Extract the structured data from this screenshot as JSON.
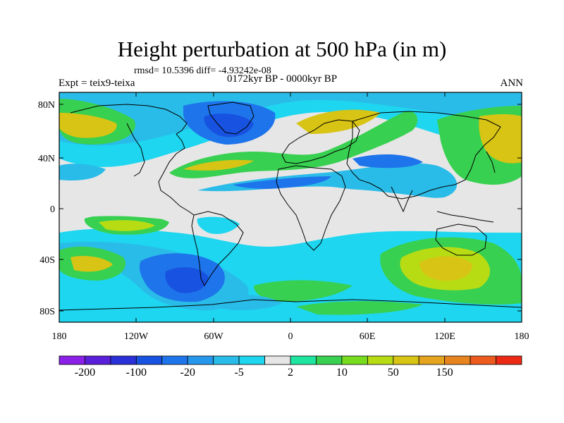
{
  "title": "Height perturbation at 500 hPa (in m)",
  "stats_line": "rmsd= 10.5396 diff= -4.93242e-08",
  "left_label": "Expt = teix9-teixa",
  "center_label": "0172kyr BP - 0000kyr BP",
  "right_label": "ANN",
  "lat_ticks": [
    "80N",
    "40N",
    "0",
    "40S",
    "80S"
  ],
  "lon_ticks": [
    "180",
    "120W",
    "60W",
    "0",
    "60E",
    "120E",
    "180"
  ],
  "colorbar": {
    "labels": [
      "-200",
      "-100",
      "-20",
      "-5",
      "2",
      "10",
      "50",
      "150"
    ],
    "colors": [
      "#8a1fe8",
      "#5a1fd8",
      "#2a30d8",
      "#1852e0",
      "#1e74ea",
      "#2598ee",
      "#2abce8",
      "#1ed6f0",
      "#e6e6e6",
      "#1ee6a0",
      "#38d050",
      "#78dc1e",
      "#b8dc14",
      "#d8c414",
      "#e6a41e",
      "#e8841e",
      "#ec5a1e",
      "#ec2a14"
    ]
  },
  "palette": {
    "neutral": "#e6e6e6",
    "cyan": "#1ed6f0",
    "lightblue": "#2abce8",
    "blue": "#1e74ea",
    "deepblue": "#1852e0",
    "aqua": "#1ee6a0",
    "green": "#38d050",
    "lime": "#b8dc14",
    "mustard": "#d8c414"
  }
}
